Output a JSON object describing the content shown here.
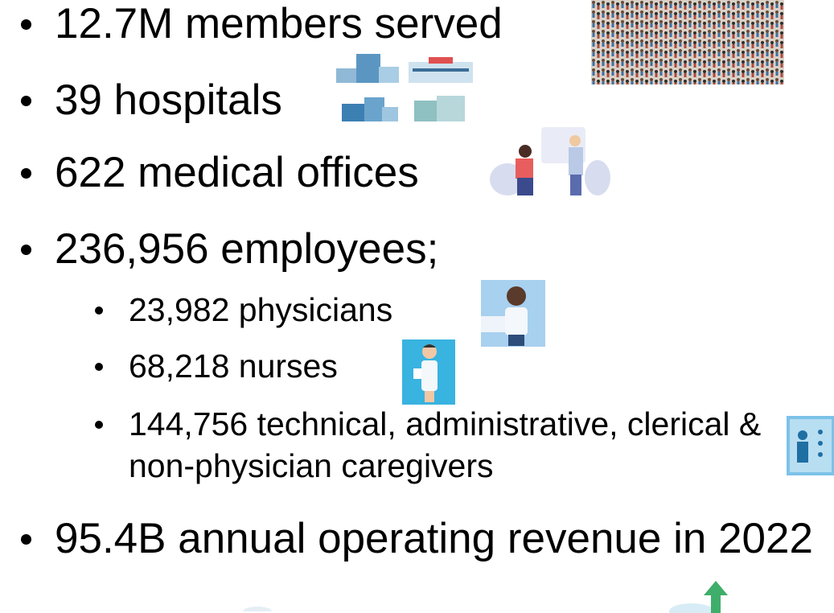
{
  "bullets": [
    {
      "text": "12.7M members served"
    },
    {
      "text": "39 hospitals"
    },
    {
      "text": "622 medical offices"
    },
    {
      "text": "236,956 employees;",
      "sub_bullets": [
        "23,982 physicians",
        "68,218 nurses",
        "144,756 technical, administrative, clerical & non-physician caregivers"
      ]
    },
    {
      "text": "95.4B annual operating revenue in 2022"
    }
  ]
}
